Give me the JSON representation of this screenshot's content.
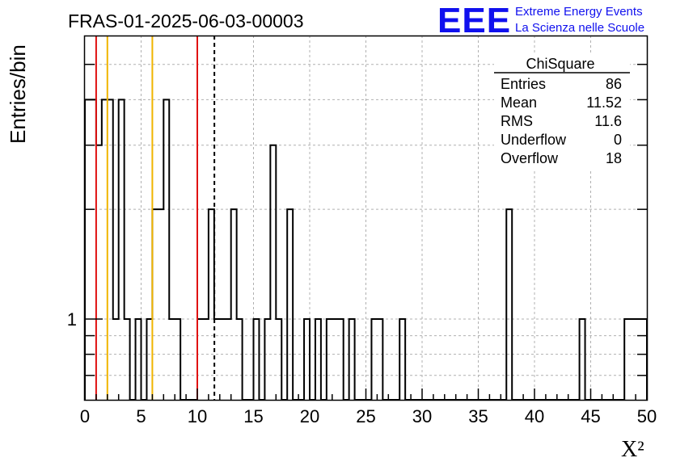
{
  "header": {
    "run_title": "FRAS-01-2025-06-03-00003",
    "logo_text": "EEE",
    "logo_line1": "Extreme Energy Events",
    "logo_line2": "La Scienza nelle Scuole"
  },
  "colors": {
    "logo_blue": "#1010ee",
    "red_line": "#e01010",
    "orange_line": "#f0b400",
    "grid": "#b0b0b0",
    "hist": "#000000"
  },
  "stats_box": {
    "title": "ChiSquare",
    "rows": [
      {
        "label": "Entries",
        "value": "86"
      },
      {
        "label": "Mean",
        "value": "11.52"
      },
      {
        "label": "RMS",
        "value": "11.6"
      },
      {
        "label": "Underflow",
        "value": "0"
      },
      {
        "label": "Overflow",
        "value": "18"
      }
    ]
  },
  "chart_data": {
    "type": "histogram",
    "xlabel": "X²",
    "ylabel": "Entries/bin",
    "xlim": [
      0,
      50
    ],
    "ylim": [
      0.6,
      6
    ],
    "y_scale": "log",
    "grid": true,
    "bin_width": 0.5,
    "bins": [
      {
        "x": 0.0,
        "y": 4
      },
      {
        "x": 0.5,
        "y": 4
      },
      {
        "x": 1.0,
        "y": 3
      },
      {
        "x": 1.5,
        "y": 4
      },
      {
        "x": 2.0,
        "y": 4
      },
      {
        "x": 2.5,
        "y": 1
      },
      {
        "x": 3.0,
        "y": 4
      },
      {
        "x": 3.5,
        "y": 1
      },
      {
        "x": 4.0,
        "y": 0
      },
      {
        "x": 4.5,
        "y": 1
      },
      {
        "x": 5.0,
        "y": 0
      },
      {
        "x": 5.5,
        "y": 1
      },
      {
        "x": 6.0,
        "y": 2
      },
      {
        "x": 6.5,
        "y": 2
      },
      {
        "x": 7.0,
        "y": 4
      },
      {
        "x": 7.5,
        "y": 1
      },
      {
        "x": 8.0,
        "y": 1
      },
      {
        "x": 8.5,
        "y": 0
      },
      {
        "x": 9.0,
        "y": 0
      },
      {
        "x": 9.5,
        "y": 0
      },
      {
        "x": 10.0,
        "y": 1
      },
      {
        "x": 10.5,
        "y": 1
      },
      {
        "x": 11.0,
        "y": 2
      },
      {
        "x": 11.5,
        "y": 1
      },
      {
        "x": 12.0,
        "y": 1
      },
      {
        "x": 12.5,
        "y": 1
      },
      {
        "x": 13.0,
        "y": 2
      },
      {
        "x": 13.5,
        "y": 1
      },
      {
        "x": 14.0,
        "y": 0
      },
      {
        "x": 14.5,
        "y": 0
      },
      {
        "x": 15.0,
        "y": 1
      },
      {
        "x": 15.5,
        "y": 0
      },
      {
        "x": 16.0,
        "y": 1
      },
      {
        "x": 16.5,
        "y": 3
      },
      {
        "x": 17.0,
        "y": 1
      },
      {
        "x": 17.5,
        "y": 0
      },
      {
        "x": 18.0,
        "y": 2
      },
      {
        "x": 18.5,
        "y": 0
      },
      {
        "x": 19.0,
        "y": 0
      },
      {
        "x": 19.5,
        "y": 1
      },
      {
        "x": 20.0,
        "y": 0
      },
      {
        "x": 20.5,
        "y": 1
      },
      {
        "x": 21.0,
        "y": 0
      },
      {
        "x": 21.5,
        "y": 1
      },
      {
        "x": 22.0,
        "y": 1
      },
      {
        "x": 22.5,
        "y": 1
      },
      {
        "x": 23.0,
        "y": 0
      },
      {
        "x": 23.5,
        "y": 1
      },
      {
        "x": 24.0,
        "y": 0
      },
      {
        "x": 24.5,
        "y": 0
      },
      {
        "x": 25.0,
        "y": 0
      },
      {
        "x": 25.5,
        "y": 1
      },
      {
        "x": 26.0,
        "y": 1
      },
      {
        "x": 26.5,
        "y": 0
      },
      {
        "x": 27.0,
        "y": 0
      },
      {
        "x": 27.5,
        "y": 0
      },
      {
        "x": 28.0,
        "y": 1
      },
      {
        "x": 28.5,
        "y": 0
      },
      {
        "x": 29.0,
        "y": 0
      },
      {
        "x": 29.5,
        "y": 0
      },
      {
        "x": 30.0,
        "y": 0
      },
      {
        "x": 30.5,
        "y": 0
      },
      {
        "x": 31.0,
        "y": 0
      },
      {
        "x": 31.5,
        "y": 0
      },
      {
        "x": 32.0,
        "y": 0
      },
      {
        "x": 32.5,
        "y": 0
      },
      {
        "x": 33.0,
        "y": 0
      },
      {
        "x": 33.5,
        "y": 0
      },
      {
        "x": 34.0,
        "y": 0
      },
      {
        "x": 34.5,
        "y": 0
      },
      {
        "x": 35.0,
        "y": 0
      },
      {
        "x": 35.5,
        "y": 0
      },
      {
        "x": 36.0,
        "y": 0
      },
      {
        "x": 36.5,
        "y": 0
      },
      {
        "x": 37.0,
        "y": 0
      },
      {
        "x": 37.5,
        "y": 2
      },
      {
        "x": 38.0,
        "y": 0
      },
      {
        "x": 38.5,
        "y": 0
      },
      {
        "x": 39.0,
        "y": 0
      },
      {
        "x": 39.5,
        "y": 0
      },
      {
        "x": 40.0,
        "y": 0
      },
      {
        "x": 40.5,
        "y": 0
      },
      {
        "x": 41.0,
        "y": 0
      },
      {
        "x": 41.5,
        "y": 0
      },
      {
        "x": 42.0,
        "y": 0
      },
      {
        "x": 42.5,
        "y": 0
      },
      {
        "x": 43.0,
        "y": 0
      },
      {
        "x": 43.5,
        "y": 0
      },
      {
        "x": 44.0,
        "y": 1
      },
      {
        "x": 44.5,
        "y": 0
      },
      {
        "x": 45.0,
        "y": 0
      },
      {
        "x": 45.5,
        "y": 0
      },
      {
        "x": 46.0,
        "y": 0
      },
      {
        "x": 46.5,
        "y": 0
      },
      {
        "x": 47.0,
        "y": 0
      },
      {
        "x": 47.5,
        "y": 0
      },
      {
        "x": 48.0,
        "y": 1
      },
      {
        "x": 48.5,
        "y": 1
      },
      {
        "x": 49.0,
        "y": 1
      },
      {
        "x": 49.5,
        "y": 1
      }
    ],
    "x_ticks": [
      0,
      5,
      10,
      15,
      20,
      25,
      30,
      35,
      40,
      45,
      50
    ],
    "y_ticks": [
      1
    ],
    "y_grid": [
      0.7,
      0.8,
      0.9,
      1,
      2,
      3,
      4,
      5
    ],
    "markers": [
      {
        "x": 1.0,
        "color": "red",
        "style": "solid"
      },
      {
        "x": 2.0,
        "color": "orange",
        "style": "solid"
      },
      {
        "x": 6.0,
        "color": "orange",
        "style": "solid"
      },
      {
        "x": 10.0,
        "color": "red",
        "style": "solid"
      },
      {
        "x": 11.52,
        "color": "black",
        "style": "dashed"
      }
    ]
  }
}
